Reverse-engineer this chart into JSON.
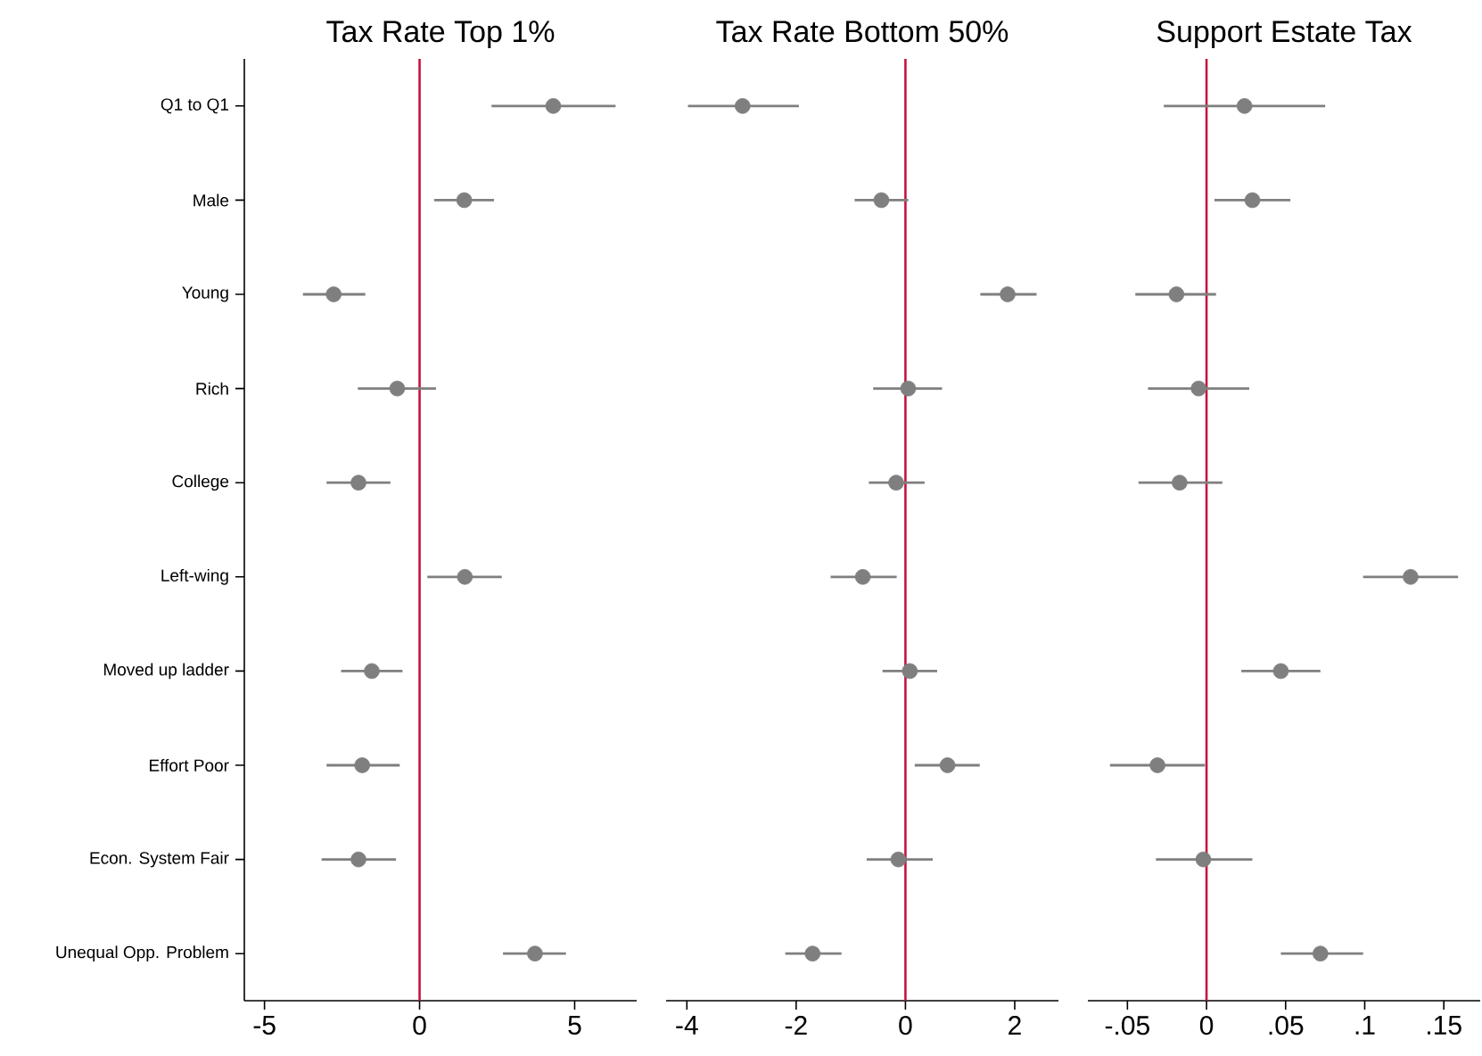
{
  "chart_data": [
    {
      "type": "scatter",
      "orientation": "horizontal",
      "title": "Tax Rate Top 1%",
      "marker": "circle",
      "color": "#7f7f7f",
      "categories": [
        "Q1 to Q1",
        "Male",
        "Young",
        "Rich",
        "College",
        "Left-wing",
        "Moved up ladder",
        "Effort Poor",
        "Econ. System Fair",
        "Unequal Opp. Problem"
      ],
      "values": [
        4.31,
        1.44,
        -2.77,
        -0.72,
        -1.97,
        1.46,
        -1.54,
        -1.85,
        -1.97,
        3.72
      ],
      "errors": [
        [
          2.32,
          6.32
        ],
        [
          0.47,
          2.4
        ],
        [
          -3.76,
          -1.75
        ],
        [
          -1.99,
          0.53
        ],
        [
          -3.0,
          -0.94
        ],
        [
          0.25,
          2.65
        ],
        [
          -2.53,
          -0.55
        ],
        [
          -3.0,
          -0.64
        ],
        [
          -3.16,
          -0.76
        ],
        [
          2.69,
          4.72
        ]
      ],
      "xlim": [
        -5.65,
        7.0
      ],
      "xticks": [
        -5,
        0,
        5
      ],
      "ref_lines": [
        {
          "axis": "x",
          "value": 0,
          "color": "#c4153f"
        }
      ]
    },
    {
      "type": "scatter",
      "orientation": "horizontal",
      "title": "Tax Rate Bottom 50%",
      "marker": "circle",
      "color": "#7f7f7f",
      "tick_labels": "x",
      "categories": [
        null,
        null,
        null,
        null,
        null,
        null,
        null,
        null,
        null,
        null
      ],
      "values": [
        -2.98,
        -0.44,
        1.87,
        0.05,
        -0.17,
        -0.78,
        0.08,
        0.77,
        -0.13,
        -1.7
      ],
      "errors": [
        [
          -3.98,
          -1.95
        ],
        [
          -0.93,
          0.05
        ],
        [
          1.37,
          2.4
        ],
        [
          -0.59,
          0.67
        ],
        [
          -0.67,
          0.35
        ],
        [
          -1.37,
          -0.16
        ],
        [
          -0.42,
          0.58
        ],
        [
          0.17,
          1.36
        ],
        [
          -0.71,
          0.5
        ],
        [
          -2.2,
          -1.17
        ]
      ],
      "xlim": [
        -4.38,
        2.8
      ],
      "xticks": [
        -4,
        -2,
        0,
        2
      ],
      "ref_lines": [
        {
          "axis": "x",
          "value": 0,
          "color": "#c4153f"
        }
      ]
    },
    {
      "type": "scatter",
      "orientation": "horizontal",
      "title": "Support Estate Tax",
      "marker": "circle",
      "color": "#7f7f7f",
      "tick_labels": "x",
      "categories": [
        null,
        null,
        null,
        null,
        null,
        null,
        null,
        null,
        null,
        null
      ],
      "values": [
        0.024,
        0.029,
        -0.019,
        -0.005,
        -0.017,
        0.129,
        0.047,
        -0.031,
        -0.002,
        0.072
      ],
      "errors": [
        [
          -0.027,
          0.075
        ],
        [
          0.005,
          0.053
        ],
        [
          -0.045,
          0.006
        ],
        [
          -0.037,
          0.027
        ],
        [
          -0.043,
          0.01
        ],
        [
          0.099,
          0.159
        ],
        [
          0.022,
          0.072
        ],
        [
          -0.061,
          -0.001
        ],
        [
          -0.032,
          0.029
        ],
        [
          0.047,
          0.099
        ]
      ],
      "xlim": [
        -0.075,
        0.173
      ],
      "xticks": [
        {
          "value": -0.05,
          "label": "-.05"
        },
        {
          "value": 0,
          "label": "0"
        },
        {
          "value": 0.05,
          "label": ".05"
        },
        {
          "value": 0.1,
          "label": ".1"
        },
        {
          "value": 0.15,
          "label": ".15"
        }
      ],
      "ref_lines": [
        {
          "axis": "x",
          "value": 0,
          "color": "#c4153f"
        }
      ]
    }
  ]
}
